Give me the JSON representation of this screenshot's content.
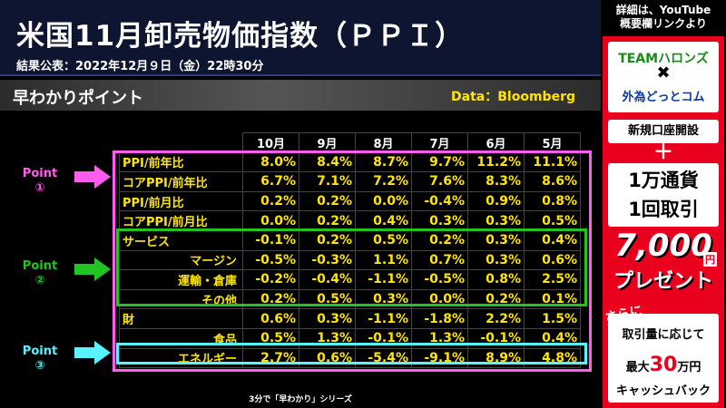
{
  "header": {
    "title": "米国11月卸売物価指数（ＰＰＩ）",
    "subtitle": "結果公表：2022年12月９日（金）22時30分"
  },
  "banner": {
    "label": "早わかりポイント",
    "source": "Data：Bloomberg"
  },
  "table": {
    "columns": [
      "10月",
      "9月",
      "8月",
      "7月",
      "6月",
      "5月"
    ],
    "rows": [
      {
        "label": "PPI/前年比",
        "values": [
          "8.0%",
          "8.4%",
          "8.7%",
          "9.7%",
          "11.2%",
          "11.1%"
        ]
      },
      {
        "label": "コアPPI/前年比",
        "values": [
          "6.7%",
          "7.1%",
          "7.2%",
          "7.6%",
          "8.3%",
          "8.6%"
        ]
      },
      {
        "label": "PPI/前月比",
        "values": [
          "0.2%",
          "0.2%",
          "0.0%",
          "-0.4%",
          "0.9%",
          "0.8%"
        ]
      },
      {
        "label": "コアPPI/前月比",
        "values": [
          "0.0%",
          "0.2%",
          "0.4%",
          "0.3%",
          "0.3%",
          "0.5%"
        ]
      },
      {
        "label": "サービス",
        "values": [
          "-0.1%",
          "0.2%",
          "0.5%",
          "0.2%",
          "0.3%",
          "0.4%"
        ]
      },
      {
        "label": "マージン",
        "values": [
          "-0.5%",
          "-0.3%",
          "1.1%",
          "0.7%",
          "0.3%",
          "0.6%"
        ]
      },
      {
        "label": "運輸・倉庫",
        "values": [
          "-0.2%",
          "-0.4%",
          "-1.1%",
          "-0.5%",
          "0.8%",
          "2.5%"
        ]
      },
      {
        "label": "その他",
        "values": [
          "0.2%",
          "0.5%",
          "0.3%",
          "0.0%",
          "0.2%",
          "0.1%"
        ]
      },
      {
        "label": "財",
        "values": [
          "0.6%",
          "0.3%",
          "-1.1%",
          "-1.8%",
          "2.2%",
          "1.5%"
        ]
      },
      {
        "label": "食品",
        "values": [
          "0.5%",
          "1.3%",
          "-0.1%",
          "1.3%",
          "-0.1%",
          "0.4%"
        ]
      },
      {
        "label": "エネルギー",
        "values": [
          "2.7%",
          "0.6%",
          "-5.4%",
          "-9.1%",
          "8.9%",
          "4.8%"
        ]
      }
    ]
  },
  "points": [
    {
      "label": "Point",
      "number": "①",
      "color": "#ff5cf0"
    },
    {
      "label": "Point",
      "number": "②",
      "color": "#22c322"
    },
    {
      "label": "Point",
      "number": "③",
      "color": "#59f3ff"
    }
  ],
  "footer": "3分で「早わかり」シリーズ",
  "side": {
    "top_line1": "詳細は、YouTube",
    "top_line2": "概要欄リンクより",
    "brand1": "TEAMハロンズ",
    "cross": "✖",
    "brand2": "外為どっとコム",
    "account": "新規口座開設",
    "plus": "＋",
    "trade_line1": "1万通貨",
    "trade_line2": "1回取引",
    "amount": "7,000",
    "amount_unit": "円",
    "present": "プレゼント",
    "sarani": "さらに",
    "cash_line1": "取引量に応じて",
    "cash_prefix": "最大",
    "cash_amount": "30",
    "cash_suffix": "万円",
    "cash_line3": "キャッシュバック"
  }
}
